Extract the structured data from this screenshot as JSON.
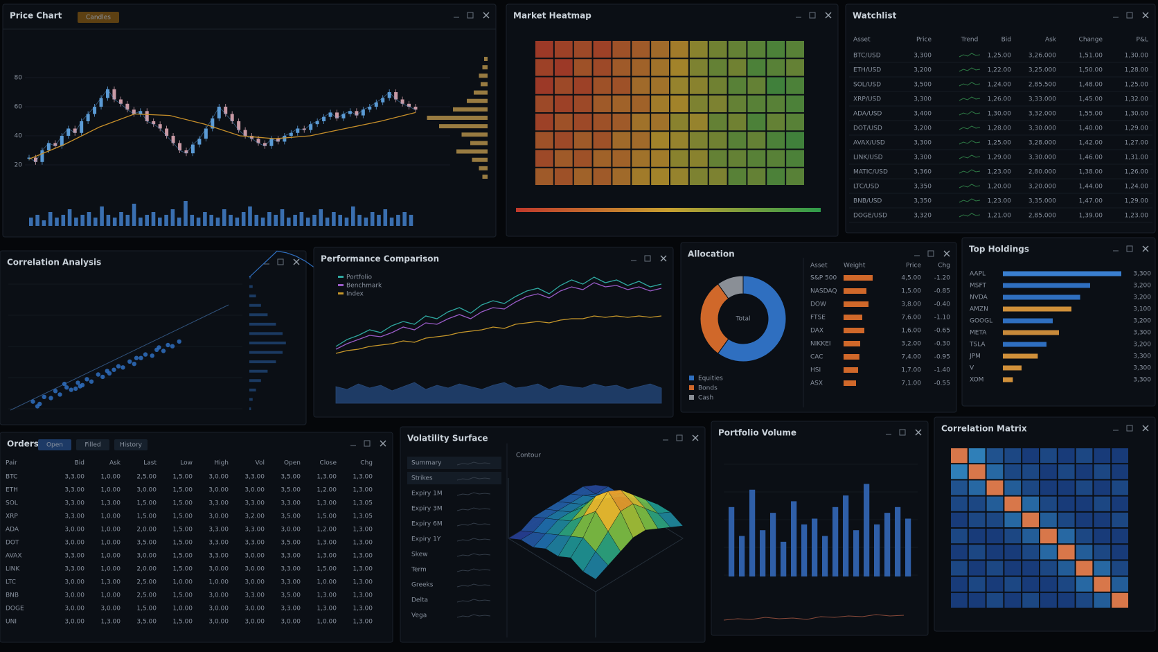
{
  "candles": {
    "title": "Price Chart",
    "tab": "Candles",
    "ylim": [
      0,
      100
    ],
    "yticks": [
      20,
      40,
      60,
      80
    ],
    "close": [
      25,
      22,
      30,
      35,
      33,
      40,
      45,
      42,
      50,
      55,
      60,
      66,
      72,
      65,
      62,
      58,
      55,
      57,
      50,
      48,
      45,
      40,
      35,
      30,
      28,
      34,
      38,
      45,
      52,
      60,
      55,
      50,
      44,
      40,
      38,
      35,
      33,
      38,
      36,
      40,
      42,
      45,
      44,
      48,
      50,
      53,
      56,
      52,
      55,
      57,
      54,
      58,
      60,
      63,
      66,
      70,
      65,
      62,
      60,
      58
    ],
    "ma": [
      24,
      34,
      46,
      55,
      54,
      48,
      40,
      38,
      40,
      45,
      50,
      56
    ],
    "volume": [
      3,
      4,
      2,
      5,
      3,
      4,
      6,
      3,
      4,
      5,
      3,
      7,
      4,
      3,
      5,
      4,
      8,
      3,
      4,
      5,
      3,
      4,
      6,
      3,
      9,
      4,
      3,
      5,
      4,
      3,
      6,
      4,
      3,
      5,
      7,
      4,
      3,
      5,
      4,
      6,
      3,
      4,
      5,
      3,
      4,
      6,
      3,
      5,
      4,
      3,
      7,
      4,
      3,
      5,
      4,
      6,
      3,
      4,
      5,
      4
    ],
    "vlim": [
      0,
      10
    ],
    "profile": [
      2,
      3,
      5,
      4,
      8,
      12,
      20,
      35,
      28,
      15,
      10,
      18,
      9,
      5,
      3
    ],
    "plim": [
      0,
      40
    ],
    "up_color": "#5b9bd5",
    "down_color": "#c99aa5",
    "ma_color": "#c8902a",
    "volume_color": "#3a6fb0",
    "profile_color": "#c8a050"
  },
  "heatmap": {
    "title": "Market Heatmap",
    "zlim": [
      -1,
      1
    ],
    "colors": [
      "#c0392b",
      "#c8a030",
      "#2e9b4a"
    ],
    "rows": [
      [
        -0.9,
        -0.8,
        -0.7,
        -0.8,
        -0.6,
        -0.5,
        -0.3,
        -0.1,
        0.2,
        0.4,
        0.5,
        0.6,
        0.7,
        0.6
      ],
      [
        -0.8,
        -0.9,
        -0.6,
        -0.7,
        -0.5,
        -0.4,
        -0.2,
        0.0,
        0.3,
        0.5,
        0.4,
        0.7,
        0.6,
        0.5
      ],
      [
        -0.9,
        -0.7,
        -0.8,
        -0.6,
        -0.6,
        -0.3,
        -0.2,
        0.1,
        0.2,
        0.4,
        0.6,
        0.5,
        0.8,
        0.7
      ],
      [
        -0.7,
        -0.8,
        -0.7,
        -0.5,
        -0.4,
        -0.4,
        -0.1,
        0.0,
        0.3,
        0.3,
        0.5,
        0.6,
        0.6,
        0.7
      ],
      [
        -0.8,
        -0.6,
        -0.7,
        -0.6,
        -0.5,
        -0.2,
        -0.2,
        0.2,
        0.1,
        0.5,
        0.4,
        0.7,
        0.5,
        0.6
      ],
      [
        -0.6,
        -0.7,
        -0.5,
        -0.6,
        -0.3,
        -0.3,
        0.0,
        0.1,
        0.3,
        0.4,
        0.6,
        0.5,
        0.7,
        0.8
      ],
      [
        -0.7,
        -0.5,
        -0.6,
        -0.4,
        -0.4,
        -0.2,
        -0.1,
        0.2,
        0.2,
        0.5,
        0.5,
        0.6,
        0.6,
        0.7
      ],
      [
        -0.5,
        -0.6,
        -0.4,
        -0.5,
        -0.3,
        -0.1,
        0.0,
        0.1,
        0.3,
        0.3,
        0.6,
        0.5,
        0.7,
        0.6
      ]
    ]
  },
  "watchlist": {
    "title": "Watchlist",
    "headers": [
      "Asset",
      "Price",
      "Trend",
      "Bid",
      "Ask",
      "Change",
      "P&L"
    ],
    "column_colors": [
      "#b8c0ca",
      "#d8b23a",
      "#d8b23a",
      "#3fb950",
      "#e5533d",
      "#e5533d"
    ],
    "rows": [
      [
        "BTC/USD",
        "3,300",
        "1,25.00",
        "3,26.000",
        "1,51.00",
        "1,30.00"
      ],
      [
        "ETH/USD",
        "3,200",
        "1,22.00",
        "3,25.000",
        "1,50.00",
        "1,28.00"
      ],
      [
        "SOL/USD",
        "3,500",
        "1,24.00",
        "2,85.500",
        "1,48.00",
        "1,25.00"
      ],
      [
        "XRP/USD",
        "3,300",
        "1,26.00",
        "3,33.000",
        "1,45.00",
        "1,32.00"
      ],
      [
        "ADA/USD",
        "3,400",
        "1,30.00",
        "3,32.000",
        "1,55.00",
        "1,30.00"
      ],
      [
        "DOT/USD",
        "3,200",
        "1,28.00",
        "3,30.000",
        "1,40.00",
        "1,29.00"
      ],
      [
        "AVAX/USD",
        "3,300",
        "1,25.00",
        "3,28.000",
        "1,42.00",
        "1,27.00"
      ],
      [
        "LINK/USD",
        "3,300",
        "1,29.00",
        "3,30.000",
        "1,46.00",
        "1,31.00"
      ],
      [
        "MATIC/USD",
        "3,360",
        "1,23.00",
        "2,80.000",
        "1,38.00",
        "1,26.00"
      ],
      [
        "LTC/USD",
        "3,350",
        "1,20.00",
        "3,20.000",
        "1,44.00",
        "1,24.00"
      ],
      [
        "BNB/USD",
        "3,350",
        "1,23.00",
        "3,35.000",
        "1,47.00",
        "1,29.00"
      ],
      [
        "DOGE/USD",
        "3,320",
        "1,21.00",
        "2,85.000",
        "1,39.00",
        "1,23.00"
      ]
    ]
  },
  "scatter": {
    "title": "Correlation Analysis",
    "xlim": [
      0,
      10
    ],
    "ylim": [
      0,
      10
    ],
    "color": "#2f6fc0",
    "dist_color": "#2f6fc0",
    "dlim": [
      0,
      25
    ],
    "x": [
      1,
      1.3,
      1.5,
      1.8,
      2,
      2.2,
      2.5,
      2.7,
      3,
      3.2,
      3.4,
      3.6,
      3.9,
      4.1,
      4.3,
      4.6,
      4.8,
      5,
      5.3,
      5.5,
      5.8,
      6,
      6.3,
      6.5,
      6.8,
      7,
      7.2,
      7.5,
      1.2,
      2.4,
      3.1,
      4.4,
      5.6,
      6.6,
      2.9
    ],
    "y": [
      1.2,
      1.0,
      1.6,
      1.5,
      2.1,
      1.8,
      2.4,
      2.2,
      2.8,
      2.6,
      3.1,
      2.9,
      3.5,
      3.3,
      3.8,
      3.9,
      4.2,
      4.1,
      4.6,
      4.4,
      4.9,
      5.2,
      5.1,
      5.6,
      5.5,
      6.0,
      5.9,
      6.3,
      0.8,
      2.7,
      2.5,
      3.6,
      4.9,
      5.8,
      2.3
    ],
    "dist": [
      1,
      2,
      4,
      7,
      11,
      16,
      20,
      22,
      20,
      16,
      11,
      7,
      4,
      2,
      1
    ]
  },
  "lines": {
    "title": "Performance Comparison",
    "ylim": [
      0,
      100
    ],
    "vlim": [
      0,
      20
    ],
    "volume_color": "#2f5fa8",
    "series": [
      {
        "name": "Portfolio",
        "color": "#2fa8a0",
        "values": [
          30,
          35,
          38,
          42,
          40,
          45,
          48,
          46,
          52,
          50,
          55,
          58,
          54,
          60,
          63,
          61,
          66,
          70,
          72,
          68,
          74,
          78,
          75,
          80,
          76,
          78,
          74,
          77,
          73,
          75
        ]
      },
      {
        "name": "Benchmark",
        "color": "#9a5cc8",
        "values": [
          28,
          32,
          35,
          38,
          37,
          40,
          44,
          42,
          47,
          46,
          50,
          53,
          50,
          55,
          58,
          57,
          62,
          66,
          68,
          65,
          70,
          73,
          71,
          76,
          73,
          74,
          71,
          73,
          70,
          72
        ]
      },
      {
        "name": "Index",
        "color": "#c8982a",
        "values": [
          25,
          27,
          28,
          30,
          31,
          32,
          34,
          33,
          36,
          37,
          38,
          40,
          41,
          42,
          44,
          43,
          46,
          47,
          48,
          47,
          49,
          50,
          50,
          52,
          51,
          52,
          51,
          52,
          51,
          52
        ]
      }
    ],
    "volume": [
      12,
      10,
      14,
      11,
      13,
      9,
      12,
      15,
      10,
      13,
      11,
      14,
      12,
      10,
      13,
      15,
      11,
      12,
      14,
      10,
      13,
      12,
      11,
      14,
      12,
      13,
      10,
      12,
      14,
      11
    ]
  },
  "donut": {
    "title": "Allocation",
    "center": "Total",
    "segments": [
      {
        "name": "Equities",
        "value": 60,
        "color": "#2f6fc0"
      },
      {
        "name": "Bonds",
        "value": 30,
        "color": "#d0682a"
      },
      {
        "name": "Cash",
        "value": 10,
        "color": "#8a8f96"
      }
    ],
    "headers": [
      "Asset",
      "Weight",
      "Price",
      "Chg"
    ],
    "bar_color": "#d0682a",
    "xlim": [
      0,
      100
    ],
    "labels": [
      "S&P 500",
      "NASDAQ",
      "DOW",
      "FTSE",
      "DAX",
      "NIKKEI",
      "CAC",
      "HSI",
      "ASX"
    ],
    "weights": [
      70,
      55,
      60,
      45,
      50,
      40,
      38,
      35,
      30
    ],
    "prices": [
      "4,5.00",
      "1,5.00",
      "3,8.00",
      "7,6.00",
      "1,6.00",
      "3,2.00",
      "7,4.00",
      "1,7.00",
      "7,1.00"
    ],
    "changes": [
      "-1.20",
      "-0.85",
      "-0.40",
      "-1.10",
      "-0.65",
      "-0.30",
      "-0.95",
      "-1.40",
      "-0.55"
    ]
  },
  "holdings": {
    "title": "Top Holdings",
    "xlim": [
      0,
      100
    ],
    "labels": [
      "AAPL",
      "MSFT",
      "NVDA",
      "AMZN",
      "GOOGL",
      "META",
      "TSLA",
      "JPM",
      "V",
      "XOM"
    ],
    "values": [
      95,
      70,
      62,
      55,
      40,
      45,
      35,
      28,
      15,
      8
    ],
    "colors": [
      "#3a7fd0",
      "#2f6fc0",
      "#2f6fc0",
      "#d0903a",
      "#2f6fc0",
      "#c88a3a",
      "#2f6fc0",
      "#d0903a",
      "#d0903a",
      "#d0903a"
    ],
    "amounts": [
      "3,300",
      "3,200",
      "3,200",
      "3,100",
      "3,200",
      "3,300",
      "3,200",
      "3,300",
      "3,300",
      "3,300"
    ]
  },
  "orders": {
    "title": "Orders",
    "tabs": [
      "Open",
      "Filled",
      "History"
    ],
    "headers": [
      "Pair",
      "Bid",
      "Ask",
      "Last",
      "Low",
      "High",
      "Vol",
      "Open",
      "Close",
      "Chg"
    ],
    "column_colors": [
      "#b8c0ca",
      "#d8b23a",
      "#e08a30",
      "#d8b23a",
      "#e5533d",
      "#c9ced6",
      "#3fb950",
      "#d8b23a",
      "#e5533d",
      "#3fb950"
    ],
    "rows": [
      [
        "BTC",
        "3,3.00",
        "1,0.00",
        "2,5.00",
        "1,5.00",
        "3,0.00",
        "3,3.00",
        "3,5.00",
        "1,3.00",
        "1,3.00"
      ],
      [
        "ETH",
        "3,3.00",
        "1,0.00",
        "3,0.00",
        "1,5.00",
        "3,0.00",
        "3,0.00",
        "3,5.00",
        "1,2.00",
        "1,3.00"
      ],
      [
        "SOL",
        "3,3.00",
        "1,3.00",
        "1,5.00",
        "1,5.00",
        "3,3.00",
        "3,3.00",
        "3,3.00",
        "1,3.00",
        "1,3.05"
      ],
      [
        "XRP",
        "3,3.00",
        "1,0.00",
        "1,5.00",
        "1,5.00",
        "3,0.00",
        "3,2.00",
        "3,5.00",
        "1,5.00",
        "1,3.05"
      ],
      [
        "ADA",
        "3,0.00",
        "1,0.00",
        "2,0.00",
        "1,5.00",
        "3,3.00",
        "3,3.00",
        "3,0.00",
        "1,2.00",
        "1,3.00"
      ],
      [
        "DOT",
        "3,0.00",
        "1,0.00",
        "3,5.00",
        "1,5.00",
        "3,3.00",
        "3,3.00",
        "3,5.00",
        "1,3.00",
        "1,3.00"
      ],
      [
        "AVAX",
        "3,3.00",
        "1,0.00",
        "3,0.00",
        "1,5.00",
        "3,3.00",
        "3,0.00",
        "3,3.00",
        "1,3.00",
        "1,3.00"
      ],
      [
        "LINK",
        "3,3.00",
        "1,0.00",
        "2,0.00",
        "1,5.00",
        "3,0.00",
        "3,0.00",
        "3,3.00",
        "1,5.00",
        "1,3.00"
      ],
      [
        "LTC",
        "3,0.00",
        "1,3.00",
        "2,5.00",
        "1,0.00",
        "1,0.00",
        "3,0.00",
        "3,3.00",
        "1,0.00",
        "1,3.00"
      ],
      [
        "BNB",
        "3,0.00",
        "1,0.00",
        "2,5.00",
        "1,5.00",
        "3,0.00",
        "3,3.00",
        "3,5.00",
        "1,3.00",
        "1,3.00"
      ],
      [
        "DOGE",
        "3,0.00",
        "3,0.00",
        "1,5.00",
        "1,0.00",
        "3,0.00",
        "3,0.00",
        "3,3.00",
        "1,3.00",
        "1,3.00"
      ],
      [
        "UNI",
        "3,0.00",
        "1,3.00",
        "3,5.00",
        "1,5.00",
        "3,0.00",
        "3,0.00",
        "3,0.00",
        "1,0.00",
        "1,3.00"
      ]
    ]
  },
  "surface": {
    "title": "Volatility Surface",
    "subtitle": "Contour",
    "list": [
      "Summary",
      "Strikes",
      "Expiry 1M",
      "Expiry 3M",
      "Expiry 6M",
      "Expiry 1Y",
      "Skew",
      "Term",
      "Greeks",
      "Delta",
      "Vega"
    ],
    "zlim": [
      0,
      10
    ],
    "colors": [
      "#2a2f8a",
      "#1f6fb0",
      "#1fa08a",
      "#8cc43a",
      "#f0c030",
      "#e06a2a"
    ],
    "z": [
      [
        0,
        1,
        1,
        2,
        2,
        3,
        3,
        2
      ],
      [
        1,
        1,
        2,
        3,
        4,
        5,
        4,
        3
      ],
      [
        1,
        2,
        3,
        4,
        6,
        7,
        6,
        4
      ],
      [
        1,
        2,
        3,
        5,
        7,
        9,
        8,
        5
      ],
      [
        1,
        2,
        3,
        5,
        8,
        10,
        8,
        5
      ],
      [
        1,
        2,
        3,
        4,
        6,
        8,
        6,
        4
      ],
      [
        0,
        1,
        2,
        3,
        4,
        5,
        4,
        3
      ],
      [
        0,
        1,
        1,
        2,
        2,
        3,
        2,
        2
      ]
    ]
  },
  "bars": {
    "title": "Portfolio Volume",
    "ylim": [
      0,
      100
    ],
    "color": "#2f5fa8",
    "values": [
      60,
      35,
      75,
      40,
      55,
      30,
      65,
      45,
      50,
      35,
      60,
      70,
      40,
      80,
      45,
      55,
      60,
      50
    ]
  },
  "matrix": {
    "title": "Correlation Matrix",
    "low_color": "#14306e",
    "high_color": "#2f7fb8",
    "diag_color": "#d8774a",
    "rows": [
      [
        1,
        0.7,
        0.3,
        0.2,
        0.1,
        0.2,
        0.1,
        0.2,
        0.1,
        0.1
      ],
      [
        0.7,
        1,
        0.5,
        0.2,
        0.2,
        0.1,
        0.2,
        0.1,
        0.2,
        0.1
      ],
      [
        0.3,
        0.5,
        1,
        0.4,
        0.2,
        0.1,
        0.1,
        0.2,
        0.1,
        0.2
      ],
      [
        0.2,
        0.2,
        0.4,
        1,
        0.5,
        0.2,
        0.1,
        0.1,
        0.2,
        0.1
      ],
      [
        0.1,
        0.2,
        0.2,
        0.5,
        1,
        0.4,
        0.2,
        0.1,
        0.1,
        0.2
      ],
      [
        0.2,
        0.1,
        0.1,
        0.2,
        0.4,
        1,
        0.5,
        0.2,
        0.1,
        0.1
      ],
      [
        0.1,
        0.2,
        0.1,
        0.1,
        0.2,
        0.5,
        1,
        0.4,
        0.2,
        0.1
      ],
      [
        0.2,
        0.1,
        0.2,
        0.1,
        0.1,
        0.2,
        0.4,
        1,
        0.5,
        0.2
      ],
      [
        0.1,
        0.2,
        0.1,
        0.2,
        0.1,
        0.1,
        0.2,
        0.5,
        1,
        0.4
      ],
      [
        0.1,
        0.1,
        0.2,
        0.1,
        0.2,
        0.1,
        0.1,
        0.2,
        0.4,
        1
      ]
    ]
  }
}
